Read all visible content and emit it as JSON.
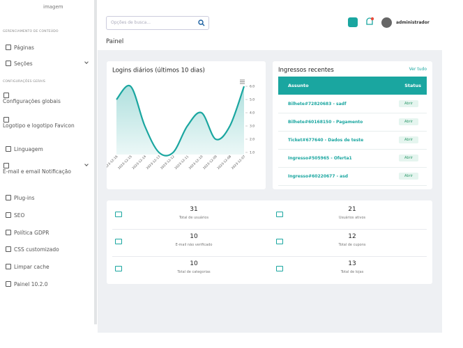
{
  "sidebar": {
    "logo": "imagem",
    "groups": [
      {
        "label": "GERENCIAMENTO DE CONTEÚDO",
        "items": [
          {
            "text": "Páginas"
          },
          {
            "text": "Seções"
          }
        ]
      },
      {
        "label": "CONFIGURAÇÕES GERAIS",
        "items": [
          {
            "text": "Configurações globais"
          },
          {
            "text": "Logotipo e logotipo Favicon"
          },
          {
            "text": "Linguagem"
          },
          {
            "text": "E-mail e email Notificação"
          },
          {
            "text": "Plug-ins"
          },
          {
            "text": "SEO"
          },
          {
            "text": "Política GDPR"
          },
          {
            "text": "CSS customizado"
          },
          {
            "text": "Limpar cache"
          },
          {
            "text": "Painel 10.2.0"
          }
        ]
      }
    ]
  },
  "header": {
    "search_placeholder": "Opções de busca...",
    "user": "administrador",
    "page_title": "Painel"
  },
  "chart_data": {
    "type": "line",
    "title": "Logins diários (últimos 10 dias)",
    "categories": [
      "2023-12-16",
      "2023-12-15",
      "2023-12-14",
      "2023-12-13",
      "2023-12-12",
      "2023-12-11",
      "2023-12-10",
      "2023-12-09",
      "2023-12-08",
      "2023-12-07"
    ],
    "values": [
      5,
      6,
      3,
      1,
      1,
      3,
      4,
      2,
      3,
      6
    ],
    "color": "#1aa6a0",
    "ylim": [
      1,
      6
    ],
    "yticks": [
      {
        "value": 1,
        "label": "1.0"
      },
      {
        "value": 2,
        "label": "2.0"
      },
      {
        "value": 3,
        "label": "3.0"
      },
      {
        "value": 4,
        "label": "4.0"
      },
      {
        "value": 5,
        "label": "5.0"
      },
      {
        "value": 6,
        "label": "6.0"
      }
    ]
  },
  "tickets": {
    "title": "Ingressos recentes",
    "link": "Ver tudo",
    "columns": [
      "Assunto",
      "Status"
    ],
    "rows": [
      [
        "Bilhete#72820683 - sadf",
        "Abrir"
      ],
      [
        "Bilhete#60168150 - Pagamento",
        "Abrir"
      ],
      [
        "Ticket#677640 - Dados de teste",
        "Abrir"
      ],
      [
        "Ingresso#505965 - Oferta1",
        "Abrir"
      ],
      [
        "Ingresso#60220677 - asd",
        "Abrir"
      ]
    ]
  },
  "stats": [
    {
      "value": "31",
      "label": "Total de usuários"
    },
    {
      "value": "21",
      "label": "Usuários ativos"
    },
    {
      "value": "10",
      "label": "E-mail não verificado"
    },
    {
      "value": "12",
      "label": "Total de cupons"
    },
    {
      "value": "10",
      "label": "Total de categorias"
    },
    {
      "value": "13",
      "label": "Total de lojas"
    }
  ]
}
